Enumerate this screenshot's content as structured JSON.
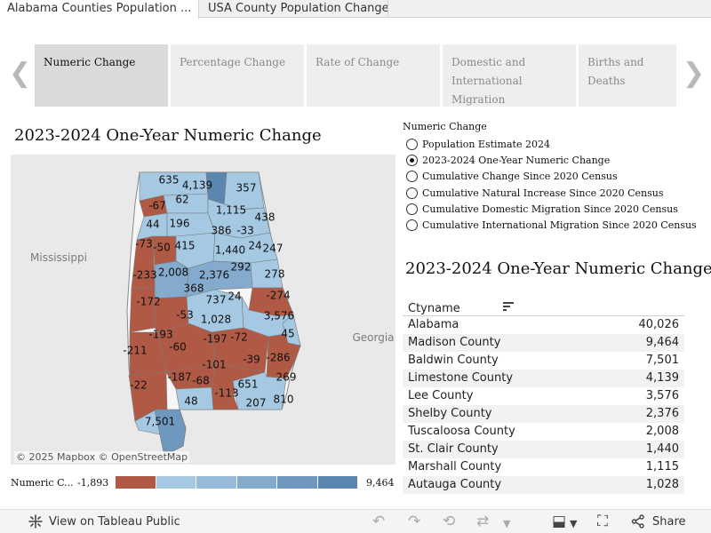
{
  "workbook_tabs": [
    {
      "label": "Alabama Counties Population ...",
      "active": true
    },
    {
      "label": "USA County Population Change",
      "active": false
    }
  ],
  "measure_tabs": [
    {
      "label": "Numeric Change",
      "active": true
    },
    {
      "label": "Percentage Change",
      "active": false
    },
    {
      "label": "Rate of Change",
      "active": false
    },
    {
      "label": "Domestic and International Migration",
      "active": false
    },
    {
      "label": "Births and Deaths",
      "active": false
    }
  ],
  "carousel": {
    "prev_glyph": "❮",
    "next_glyph": "❯"
  },
  "map": {
    "title": "2023-2024 One-Year Numeric Change",
    "neighbor_labels": [
      "Mississippi",
      "Georgia"
    ],
    "attribution": "© 2025 Mapbox  © OpenStreetMap",
    "colors": {
      "negative": "#b05a45",
      "light": "#a5c8e3",
      "mid": "#8fb5d6",
      "dark": "#5b86ad",
      "background": "#e9e9e9",
      "state_fill": "#f6f6f6"
    },
    "county_labels": [
      "635",
      "4,139",
      "357",
      "-67",
      "62",
      "1,115",
      "438",
      "44",
      "196",
      "386",
      "-33",
      "-73",
      "-50",
      "415",
      "1,440",
      "24",
      "247",
      "2,008",
      "2,376",
      "292",
      "-233",
      "278",
      "368",
      "737",
      "24",
      "-172",
      "-274",
      "-53",
      "1,028",
      "3,576",
      "-193",
      "-197",
      "-72",
      "45",
      "-211",
      "-60",
      "-39",
      "-286",
      "-101",
      "-187",
      "-68",
      "-22",
      "651",
      "269",
      "-113",
      "48",
      "207",
      "810",
      "7,501"
    ]
  },
  "selector": {
    "heading": "Numeric Change",
    "options": [
      {
        "label": "Population Estimate 2024",
        "checked": false
      },
      {
        "label": "2023-2024 One-Year Numeric Change",
        "checked": true
      },
      {
        "label": "Cumulative Change Since 2020 Census",
        "checked": false
      },
      {
        "label": "Cumulative Natural Increase Since 2020 Census",
        "checked": false
      },
      {
        "label": "Cumulative Domestic Migration Since 2020 Census",
        "checked": false
      },
      {
        "label": "Cumulative International Migration Since 2020 Census",
        "checked": false
      }
    ]
  },
  "table": {
    "title": "2023-2024 One-Year Numeric Change",
    "column_header": "Ctyname",
    "sort_icon": "sort-descending-icon",
    "rows": [
      {
        "name": "Alabama",
        "value": "40,026"
      },
      {
        "name": "Madison County",
        "value": "9,464"
      },
      {
        "name": "Baldwin County",
        "value": "7,501"
      },
      {
        "name": "Limestone County",
        "value": "4,139"
      },
      {
        "name": "Lee County",
        "value": "3,576"
      },
      {
        "name": "Shelby County",
        "value": "2,376"
      },
      {
        "name": "Tuscaloosa County",
        "value": "2,008"
      },
      {
        "name": "St. Clair County",
        "value": "1,440"
      },
      {
        "name": "Marshall County",
        "value": "1,115"
      },
      {
        "name": "Autauga County",
        "value": "1,028"
      }
    ]
  },
  "legend": {
    "label": "Numeric C...",
    "min": "-1,893",
    "max": "9,464",
    "colors": [
      "#b05a45",
      "#a5c8e3",
      "#96bbdb",
      "#84aacd",
      "#6f98bf",
      "#5b86ad"
    ]
  },
  "toolbar": {
    "view_label": "View on Tableau Public",
    "share_label": "Share",
    "icons": [
      "tableau-logo-icon",
      "undo-icon",
      "redo-icon",
      "revert-icon",
      "refresh-icon",
      "pause-dropdown-icon",
      "download-icon",
      "fullscreen-icon",
      "share-icon"
    ]
  }
}
